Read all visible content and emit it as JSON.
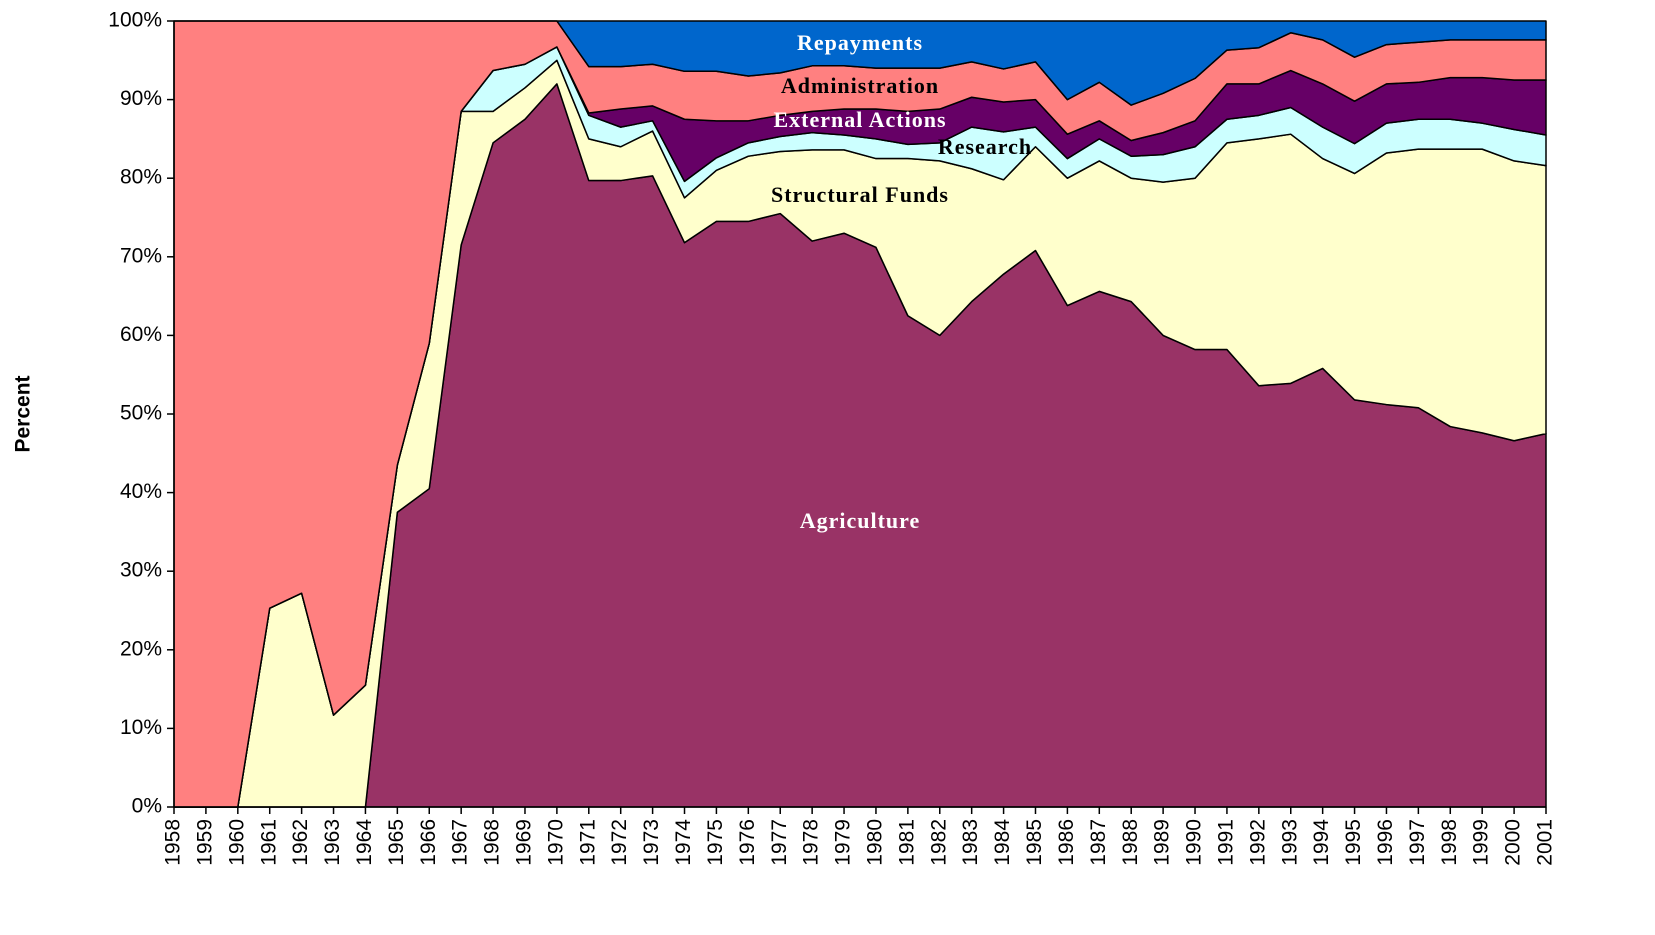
{
  "chart_data": {
    "type": "stacked_area",
    "y_label": "Percent",
    "categories": [
      "1958",
      "1959",
      "1960",
      "1961",
      "1962",
      "1963",
      "1964",
      "1965",
      "1966",
      "1967",
      "1968",
      "1969",
      "1970",
      "1971",
      "1972",
      "1973",
      "1974",
      "1975",
      "1976",
      "1977",
      "1978",
      "1979",
      "1980",
      "1981",
      "1982",
      "1983",
      "1984",
      "1985",
      "1986",
      "1987",
      "1988",
      "1989",
      "1990",
      "1991",
      "1992",
      "1993",
      "1994",
      "1995",
      "1996",
      "1997",
      "1998",
      "1999",
      "2000",
      "2001"
    ],
    "series": [
      {
        "name": "Agriculture",
        "color": "#993366",
        "label_color": "#ffffff",
        "values": [
          0,
          0,
          0,
          0,
          0,
          0,
          0,
          37.5,
          40.5,
          71.5,
          84.5,
          87.5,
          92,
          79.7,
          79.7,
          80.3,
          71.8,
          74.5,
          74.5,
          75.5,
          72,
          73,
          71.2,
          62.5,
          60,
          64.3,
          67.8,
          70.8,
          63.8,
          65.6,
          64.3,
          60,
          58.2,
          58.2,
          53.6,
          53.9,
          55.8,
          51.8,
          51.2,
          50.8,
          48.4,
          47.6,
          46.6,
          47.5
        ]
      },
      {
        "name": "Structural Funds",
        "color": "#ffffcc",
        "label_color": "#000000",
        "values": [
          0,
          0,
          0,
          25.3,
          27.2,
          11.7,
          15.5,
          6,
          18.5,
          17,
          4,
          4,
          3,
          5.3,
          4.3,
          5.7,
          5.7,
          6.5,
          8.3,
          7.9,
          11.6,
          10.6,
          11.3,
          20,
          22.2,
          16.9,
          12,
          13.2,
          16.2,
          16.6,
          15.7,
          19.5,
          21.8,
          26.3,
          31.4,
          31.7,
          26.7,
          28.8,
          32,
          32.9,
          35.3,
          36.1,
          35.6,
          34.1
        ]
      },
      {
        "name": "Research",
        "color": "#ccffff",
        "label_color": "#000000",
        "values": [
          0,
          0,
          0,
          0,
          0,
          0,
          0,
          0,
          0,
          0,
          5.2,
          3,
          1.7,
          3,
          2.5,
          1.3,
          2.1,
          1.6,
          1.7,
          1.9,
          2.2,
          1.9,
          2.5,
          1.8,
          2.3,
          5.3,
          6.1,
          2.5,
          2.5,
          2.8,
          2.8,
          3.5,
          4,
          3,
          3,
          3.4,
          4,
          3.8,
          3.8,
          3.8,
          3.8,
          3.3,
          4,
          3.9
        ]
      },
      {
        "name": "External Actions",
        "color": "#660066",
        "label_color": "#ffffff",
        "values": [
          0,
          0,
          0,
          0,
          0,
          0,
          0,
          0,
          0,
          0,
          0,
          0,
          0,
          0.3,
          2.3,
          1.9,
          7.9,
          4.7,
          2.8,
          2.7,
          2.7,
          3.3,
          3.8,
          4.2,
          4.3,
          3.8,
          3.8,
          3.5,
          3.1,
          2.3,
          2,
          2.8,
          3.3,
          4.5,
          4,
          4.7,
          5.5,
          5.4,
          5,
          4.7,
          5.3,
          5.8,
          6.3,
          7
        ]
      },
      {
        "name": "Administration",
        "color": "#ff8080",
        "label_color": "#000000",
        "values": [
          100,
          100,
          100,
          74.7,
          72.8,
          88.3,
          84.5,
          56.5,
          41,
          11.5,
          6.3,
          5.5,
          3.3,
          5.9,
          5.4,
          5.3,
          6.1,
          6.3,
          5.7,
          5.4,
          5.8,
          5.5,
          5.2,
          5.5,
          5.2,
          4.5,
          4.2,
          4.8,
          4.4,
          4.9,
          4.5,
          5,
          5.4,
          4.3,
          4.6,
          4.8,
          5.6,
          5.6,
          5,
          5.1,
          4.8,
          4.8,
          5.1,
          5.1
        ]
      },
      {
        "name": "Repayments",
        "color": "#0066cc",
        "label_color": "#ffffff",
        "values": [
          0,
          0,
          0,
          0,
          0,
          0,
          0,
          0,
          0,
          0,
          0,
          0,
          0,
          5.8,
          5.8,
          5.5,
          6.4,
          6.4,
          7,
          6.6,
          5.7,
          5.7,
          6,
          6,
          6,
          5.2,
          6.1,
          5.2,
          10,
          7.8,
          10.7,
          9.2,
          7.3,
          3.7,
          3.4,
          1.5,
          2.4,
          4.6,
          3,
          2.7,
          2.4,
          2.4,
          2.4,
          2.4
        ]
      }
    ],
    "ylim": [
      0,
      100
    ],
    "yticks": [
      {
        "value": 0,
        "label": "0%"
      },
      {
        "value": 10,
        "label": "10%"
      },
      {
        "value": 20,
        "label": "20%"
      },
      {
        "value": 30,
        "label": "30%"
      },
      {
        "value": 40,
        "label": "40%"
      },
      {
        "value": 50,
        "label": "50%"
      },
      {
        "value": 60,
        "label": "60%"
      },
      {
        "value": 70,
        "label": "70%"
      },
      {
        "value": 80,
        "label": "80%"
      },
      {
        "value": 90,
        "label": "90%"
      },
      {
        "value": 100,
        "label": "100%"
      }
    ]
  }
}
